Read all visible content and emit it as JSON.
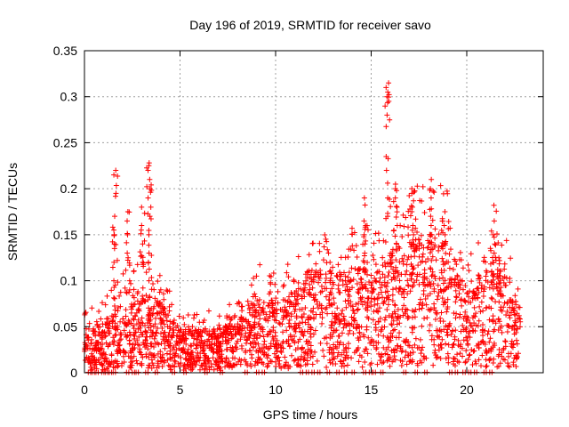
{
  "chart_data": {
    "type": "scatter",
    "title": "Day 196 of 2019, SRMTID for receiver savo",
    "xlabel": "GPS time / hours",
    "ylabel": "SRMTID / TECUs",
    "xlim": [
      0,
      24
    ],
    "ylim": [
      0,
      0.35
    ],
    "x_ticks": [
      0,
      5,
      10,
      15,
      20
    ],
    "y_ticks": [
      0,
      0.05,
      0.1,
      0.15,
      0.2,
      0.25,
      0.3,
      0.35
    ],
    "x_tick_labels": [
      "0",
      "5",
      "10",
      "15",
      "20"
    ],
    "y_tick_labels": [
      "0",
      "0.05",
      "0.1",
      "0.15",
      "0.2",
      "0.25",
      "0.3",
      "0.35"
    ],
    "grid": true,
    "marker": "+",
    "color": "#ff0000",
    "baseline_envelope": {
      "x": [
        0,
        1,
        2,
        3,
        4,
        5,
        6,
        7,
        8,
        9,
        10,
        11,
        12,
        13,
        14,
        15,
        16,
        17,
        18,
        19,
        20,
        21,
        22,
        22.8
      ],
      "y": [
        0.025,
        0.03,
        0.04,
        0.05,
        0.04,
        0.025,
        0.025,
        0.025,
        0.03,
        0.045,
        0.04,
        0.05,
        0.06,
        0.055,
        0.06,
        0.06,
        0.07,
        0.075,
        0.08,
        0.075,
        0.05,
        0.06,
        0.06,
        0.035
      ]
    },
    "clusters": [
      {
        "x": 1.6,
        "y": [
          0.22,
          0.215,
          0.195,
          0.17,
          0.155,
          0.15,
          0.14,
          0.135,
          0.12,
          0.1
        ]
      },
      {
        "x": 2.3,
        "y": [
          0.175,
          0.165,
          0.15,
          0.13,
          0.125,
          0.1,
          0.09
        ]
      },
      {
        "x": 3.0,
        "y": [
          0.18,
          0.16,
          0.155,
          0.14,
          0.12
        ]
      },
      {
        "x": 3.4,
        "y": [
          0.228,
          0.225,
          0.22,
          0.21,
          0.2,
          0.19,
          0.18,
          0.17,
          0.15,
          0.13,
          0.12,
          0.1
        ]
      },
      {
        "x": 12.8,
        "y": [
          0.13,
          0.12,
          0.11,
          0.1
        ]
      },
      {
        "x": 14.7,
        "y": [
          0.19,
          0.165,
          0.16,
          0.15,
          0.14,
          0.13,
          0.12
        ]
      },
      {
        "x": 15.85,
        "y": [
          0.315,
          0.31,
          0.305,
          0.3,
          0.295,
          0.28,
          0.235,
          0.22,
          0.19,
          0.17
        ]
      },
      {
        "x": 16.3,
        "y": [
          0.205,
          0.2,
          0.19,
          0.18,
          0.16,
          0.14
        ]
      },
      {
        "x": 17.2,
        "y": [
          0.2,
          0.195,
          0.18,
          0.175,
          0.16,
          0.15,
          0.14
        ]
      },
      {
        "x": 18.1,
        "y": [
          0.21,
          0.2,
          0.19,
          0.17,
          0.16,
          0.15
        ]
      },
      {
        "x": 18.8,
        "y": [
          0.175,
          0.165,
          0.16,
          0.15,
          0.14
        ]
      },
      {
        "x": 21.4,
        "y": [
          0.182,
          0.165,
          0.15,
          0.14,
          0.13,
          0.12
        ]
      }
    ],
    "zero_points_x": [
      0.2,
      0.4,
      0.6,
      0.9,
      1.1,
      1.3,
      1.5,
      2.2,
      2.5,
      2.7,
      3.2,
      3.7,
      4.6,
      5.2,
      6.3,
      7.1,
      8.4,
      9.0,
      9.3,
      11.3,
      11.6,
      11.9,
      12.2,
      12.7,
      13.2,
      13.6,
      14.0,
      14.6,
      14.9,
      15.1,
      15.5,
      16.7,
      17.3,
      17.8,
      19.1,
      19.4,
      19.8,
      20.1,
      20.4,
      20.9,
      21.2
    ]
  }
}
